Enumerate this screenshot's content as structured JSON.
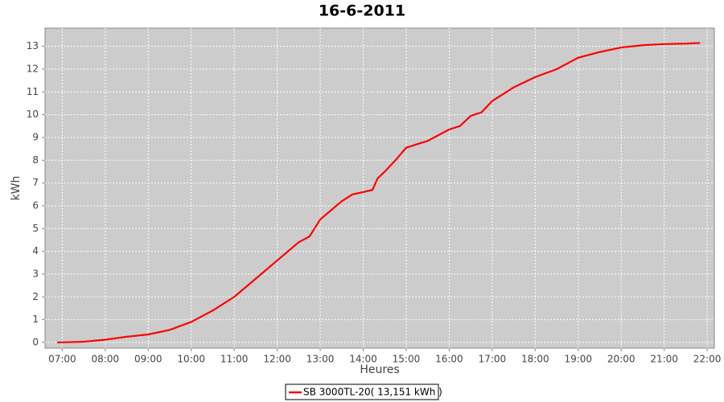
{
  "chart_data": {
    "type": "line",
    "title": "16-6-2011",
    "x_label": "Heures",
    "y_label": "kWh",
    "x": [
      "06:53",
      "07:30",
      "08:00",
      "08:30",
      "09:00",
      "09:30",
      "10:00",
      "10:30",
      "11:00",
      "11:30",
      "12:00",
      "12:15",
      "12:30",
      "12:45",
      "13:00",
      "13:15",
      "13:30",
      "13:45",
      "14:00",
      "14:13",
      "14:20",
      "14:30",
      "14:45",
      "15:00",
      "15:15",
      "15:30",
      "15:45",
      "16:00",
      "16:15",
      "16:30",
      "16:45",
      "17:00",
      "17:30",
      "18:00",
      "18:30",
      "19:00",
      "19:30",
      "20:00",
      "20:30",
      "21:00",
      "21:30",
      "21:50"
    ],
    "series": [
      {
        "name": "SB 3000TL-20( 13,151 kWh  )",
        "color": "#ff0000",
        "values": [
          0.0,
          0.03,
          0.12,
          0.25,
          0.35,
          0.55,
          0.9,
          1.4,
          2.0,
          2.8,
          3.6,
          4.0,
          4.4,
          4.65,
          5.4,
          5.8,
          6.2,
          6.5,
          6.6,
          6.7,
          7.2,
          7.5,
          8.0,
          8.55,
          8.7,
          8.85,
          9.1,
          9.35,
          9.5,
          9.95,
          10.1,
          10.6,
          11.2,
          11.65,
          12.0,
          12.5,
          12.75,
          12.95,
          13.05,
          13.1,
          13.12,
          13.15
        ]
      }
    ],
    "xlim": [
      "06:36",
      "22:10"
    ],
    "xticks": [
      "07:00",
      "08:00",
      "09:00",
      "10:00",
      "11:00",
      "12:00",
      "13:00",
      "14:00",
      "15:00",
      "16:00",
      "17:00",
      "18:00",
      "19:00",
      "20:00",
      "21:00",
      "22:00"
    ],
    "ylim": [
      -0.25,
      13.8
    ],
    "yticks": [
      0,
      1,
      2,
      3,
      4,
      5,
      6,
      7,
      8,
      9,
      10,
      11,
      12,
      13
    ],
    "grid": true
  }
}
